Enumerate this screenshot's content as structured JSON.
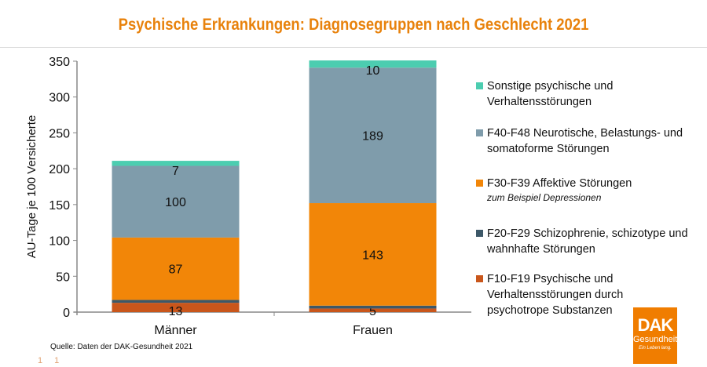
{
  "title": "Psychische Erkrankungen: Diagnosegruppen nach Geschlecht 2021",
  "source": "Quelle: Daten der DAK-Gesundheit 2021",
  "page_number": "1 1",
  "logo": {
    "name": "DAK",
    "sub": "Gesundheit",
    "slogan": "Ein Leben lang."
  },
  "chart_data": {
    "type": "bar",
    "stacked": true,
    "categories": [
      "Männer",
      "Frauen"
    ],
    "ylabel": "AU-Tage je 100 Versicherte",
    "xlabel": "",
    "ylim": [
      0,
      350
    ],
    "yticks": [
      0,
      50,
      100,
      150,
      200,
      250,
      300,
      350
    ],
    "legend_position": "right",
    "series": [
      {
        "name": "F10-F19 Psychische und Verhaltensstörungen durch psychotrope Substanzen",
        "color": "#c9561b",
        "values": [
          13,
          5
        ]
      },
      {
        "name": "F20-F29 Schizophrenie, schizotype und wahnhafte Störungen",
        "color": "#3d5868",
        "values": [
          4,
          4
        ]
      },
      {
        "name": "F30-F39 Affektive Störungen",
        "note": "zum Beispiel Depressionen",
        "color": "#f28608",
        "values": [
          87,
          143
        ]
      },
      {
        "name": "F40-F48 Neurotische, Belastungs- und somatoforme Störungen",
        "color": "#7f9cab",
        "values": [
          100,
          189
        ]
      },
      {
        "name": "Sonstige psychische und Verhaltensstörungen",
        "color": "#4ccdb0",
        "values": [
          7,
          10
        ]
      }
    ]
  }
}
